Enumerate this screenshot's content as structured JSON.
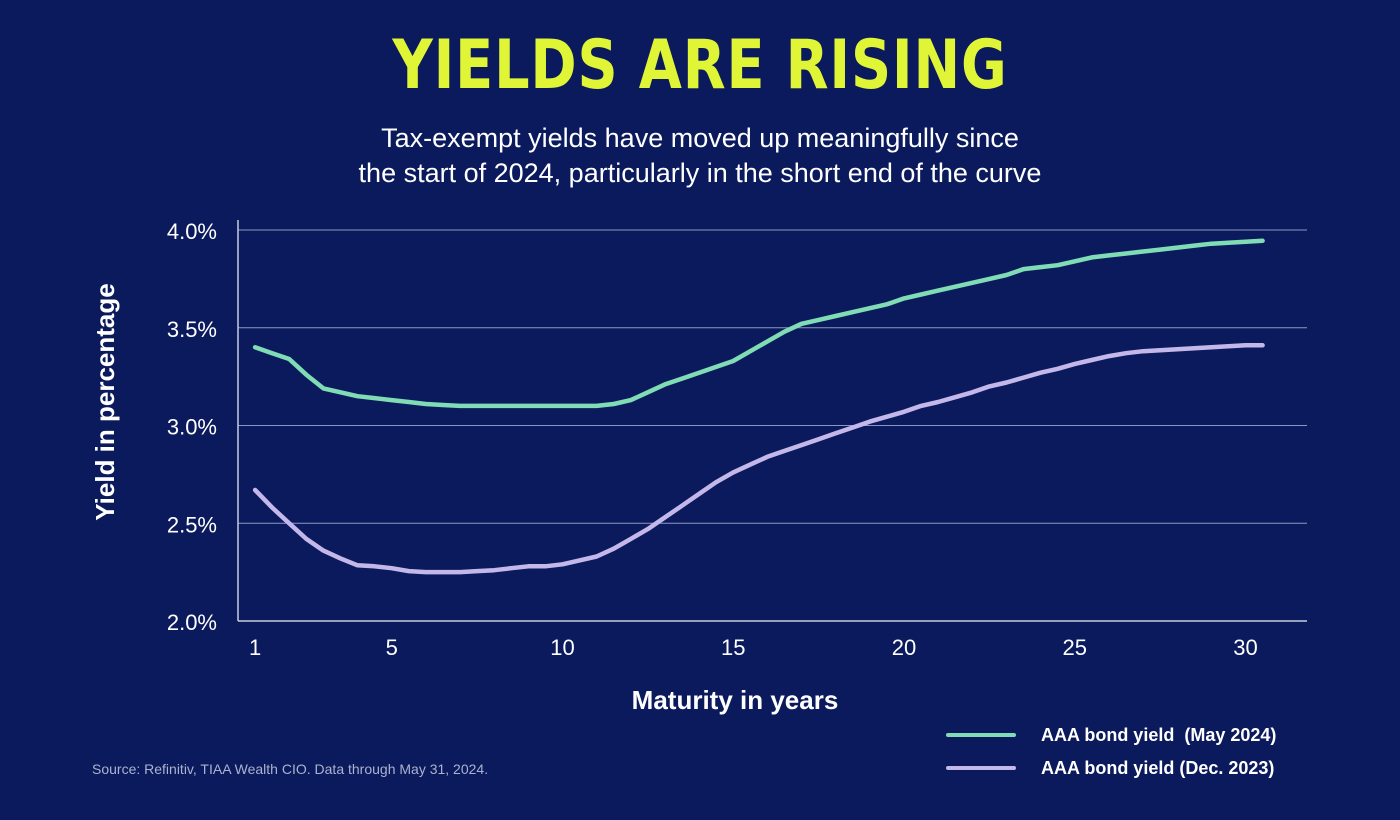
{
  "chart_data": {
    "type": "line",
    "title": "YIELDS ARE RISING",
    "subtitle_lines": [
      "Tax-exempt yields have moved up meaningfully since",
      "the start of 2024, particularly in the short end of the curve"
    ],
    "xlabel": "Maturity in years",
    "ylabel": "Yield in percentage",
    "x_ticks": [
      1,
      5,
      10,
      15,
      20,
      25,
      30
    ],
    "y_ticks": [
      2.0,
      2.5,
      3.0,
      3.5,
      4.0
    ],
    "y_tick_labels": [
      "2.0%",
      "2.5%",
      "3.0%",
      "3.5%",
      "4.0%"
    ],
    "xlim": [
      0.5,
      31.8
    ],
    "ylim": [
      2.0,
      4.0
    ],
    "grid": "horizontal",
    "legend_position": "bottom-right",
    "series": [
      {
        "name": "AAA bond yield  (May 2024)",
        "color": "#7fdcb5",
        "x": [
          1,
          1.5,
          2,
          2.5,
          3,
          3.5,
          4,
          4.5,
          5,
          5.5,
          6,
          6.5,
          7,
          7.5,
          8,
          8.5,
          9,
          9.5,
          10,
          10.5,
          11,
          11.5,
          12,
          12.5,
          13,
          13.5,
          14,
          14.5,
          15,
          15.5,
          16,
          16.5,
          17,
          17.5,
          18,
          18.5,
          19,
          19.5,
          20,
          20.5,
          21,
          21.5,
          22,
          22.5,
          23,
          23.5,
          24,
          24.5,
          25,
          25.5,
          26,
          26.5,
          27,
          27.5,
          28,
          28.5,
          29,
          29.5,
          30,
          30.5
        ],
        "values": [
          3.4,
          3.37,
          3.34,
          3.26,
          3.19,
          3.17,
          3.15,
          3.14,
          3.13,
          3.12,
          3.11,
          3.105,
          3.1,
          3.1,
          3.1,
          3.1,
          3.1,
          3.1,
          3.1,
          3.1,
          3.1,
          3.11,
          3.13,
          3.17,
          3.21,
          3.24,
          3.27,
          3.3,
          3.33,
          3.38,
          3.43,
          3.48,
          3.52,
          3.54,
          3.56,
          3.58,
          3.6,
          3.62,
          3.65,
          3.67,
          3.69,
          3.71,
          3.73,
          3.75,
          3.77,
          3.8,
          3.81,
          3.82,
          3.84,
          3.86,
          3.87,
          3.88,
          3.89,
          3.9,
          3.91,
          3.92,
          3.93,
          3.935,
          3.94,
          3.945
        ]
      },
      {
        "name": "AAA bond yield (Dec. 2023)",
        "color": "#c4b8ea",
        "x": [
          1,
          1.5,
          2,
          2.5,
          3,
          3.5,
          4,
          4.5,
          5,
          5.5,
          6,
          6.5,
          7,
          7.5,
          8,
          8.5,
          9,
          9.5,
          10,
          10.5,
          11,
          11.5,
          12,
          12.5,
          13,
          13.5,
          14,
          14.5,
          15,
          15.5,
          16,
          16.5,
          17,
          17.5,
          18,
          18.5,
          19,
          19.5,
          20,
          20.5,
          21,
          21.5,
          22,
          22.5,
          23,
          23.5,
          24,
          24.5,
          25,
          25.5,
          26,
          26.5,
          27,
          27.5,
          28,
          28.5,
          29,
          29.5,
          30,
          30.5
        ],
        "values": [
          2.67,
          2.58,
          2.5,
          2.42,
          2.36,
          2.32,
          2.285,
          2.28,
          2.27,
          2.255,
          2.25,
          2.25,
          2.25,
          2.255,
          2.26,
          2.27,
          2.28,
          2.28,
          2.29,
          2.31,
          2.33,
          2.37,
          2.42,
          2.47,
          2.53,
          2.59,
          2.65,
          2.71,
          2.76,
          2.8,
          2.84,
          2.87,
          2.9,
          2.93,
          2.96,
          2.99,
          3.02,
          3.045,
          3.07,
          3.1,
          3.12,
          3.145,
          3.17,
          3.2,
          3.22,
          3.245,
          3.27,
          3.29,
          3.315,
          3.335,
          3.355,
          3.37,
          3.38,
          3.385,
          3.39,
          3.395,
          3.4,
          3.405,
          3.41,
          3.41
        ]
      }
    ],
    "source": "Source: Refinitiv, TIAA Wealth CIO. Data through May 31, 2024."
  }
}
